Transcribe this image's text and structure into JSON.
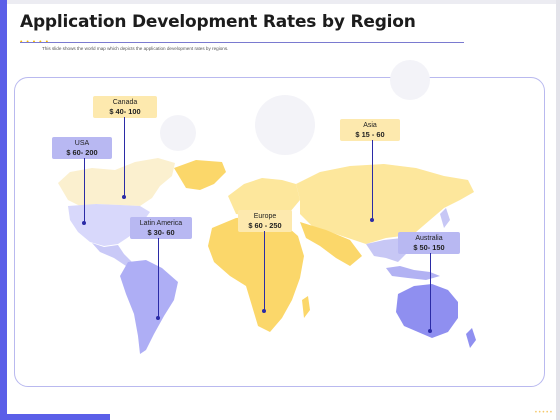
{
  "title": "Application Development Rates by Region",
  "subtitle": "This slide shows the world map which depicts the application development rates by regions.",
  "regions": [
    {
      "key": "canada",
      "name": "Canada",
      "rate": "$ 40- 100",
      "color": "#fde9ae"
    },
    {
      "key": "usa",
      "name": "USA",
      "rate": "$ 60- 200",
      "color": "#b8b8f2"
    },
    {
      "key": "latin_america",
      "name": "Latin America",
      "rate": "$ 30- 60",
      "color": "#b8b8f2"
    },
    {
      "key": "europe",
      "name": "Europe",
      "rate": "$ 60 - 250",
      "color": "#fde9ae"
    },
    {
      "key": "asia",
      "name": "Asia",
      "rate": "$ 15 - 60",
      "color": "#fde9ae"
    },
    {
      "key": "australia",
      "name": "Australia",
      "rate": "$ 50- 150",
      "color": "#b8b8f2"
    }
  ],
  "colors": {
    "accent": "#5b5fe8",
    "north_america_fill": "#fbf0cf",
    "usa_fill": "#d8d8fb",
    "south_america_fill": "#aeaef5",
    "africa_europe_fill": "#fbd76a",
    "asia_fill": "#fde79c",
    "southeast_asia_fill": "#c7c7f5",
    "australia_fill": "#8f8ff0",
    "leader_line": "#2b2ba6"
  }
}
